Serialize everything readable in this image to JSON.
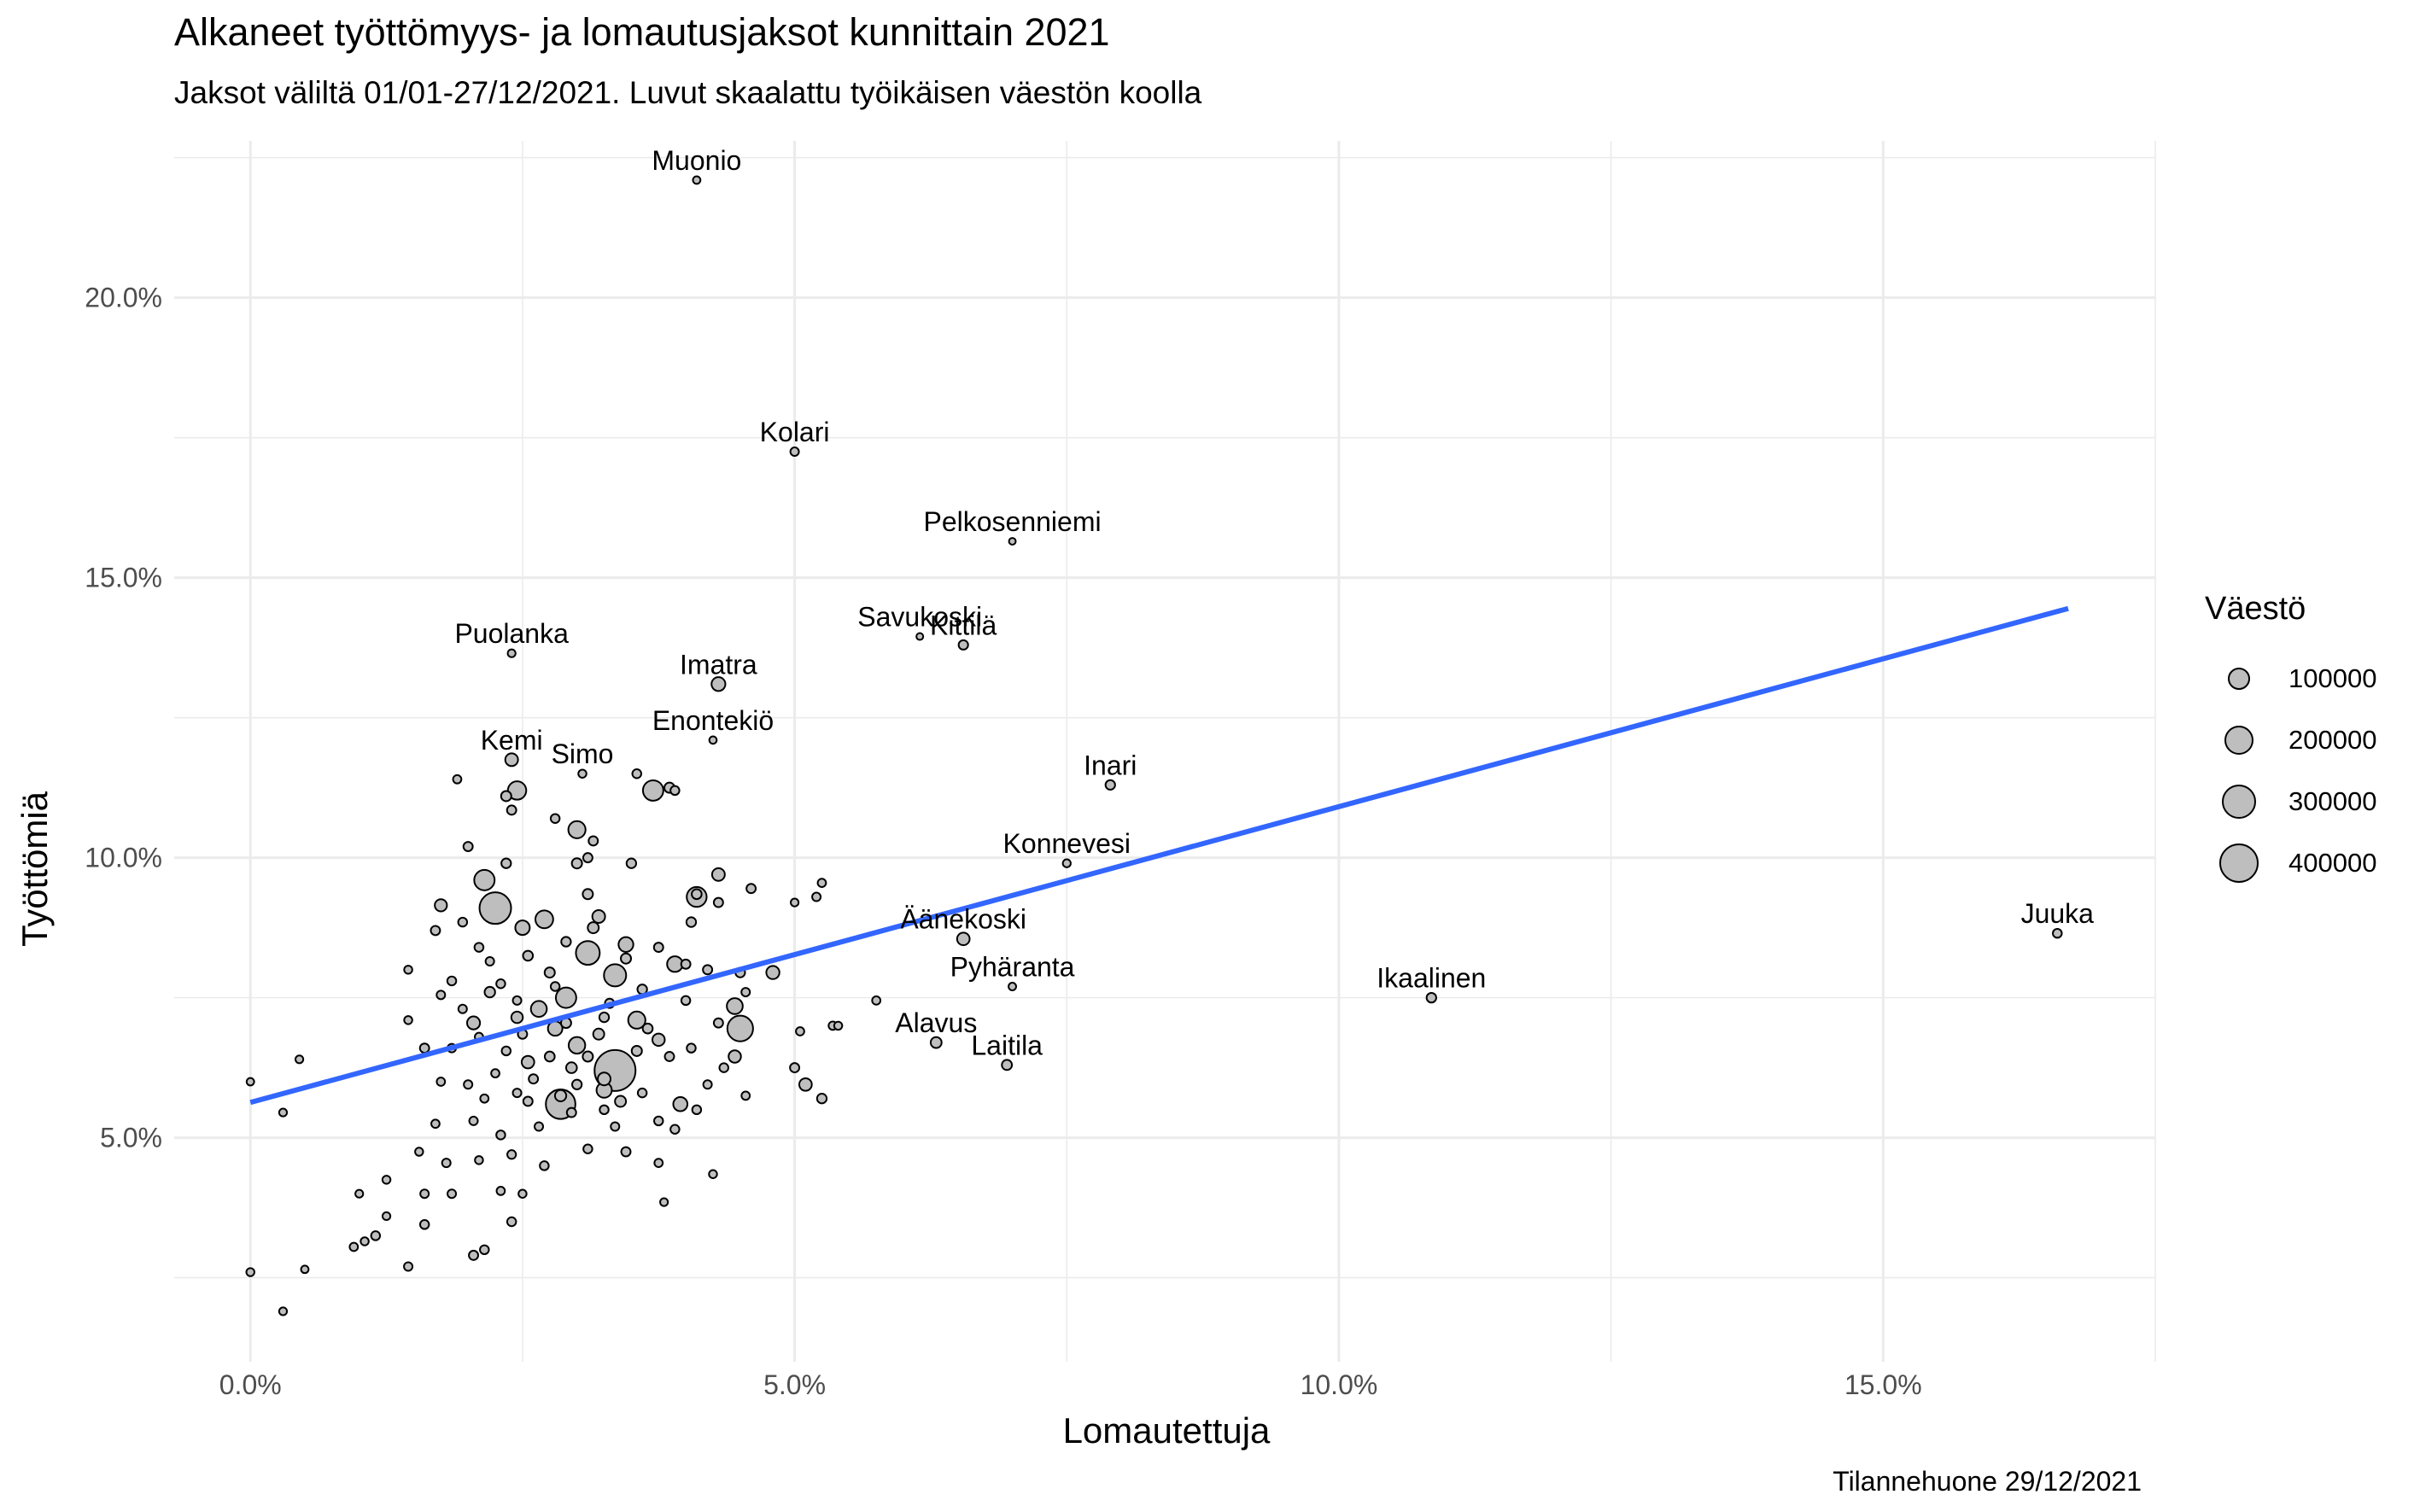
{
  "title": "Alkaneet työttömyys- ja lomautusjaksot kunnittain 2021",
  "subtitle": "Jaksot väliltä 01/01-27/12/2021. Luvut skaalattu työikäisen väestön koolla",
  "caption": "Tilannehuone 29/12/2021",
  "legend": {
    "title": "Väestö",
    "items": [
      {
        "label": "100000",
        "value": 100000
      },
      {
        "label": "200000",
        "value": 200000
      },
      {
        "label": "300000",
        "value": 300000
      },
      {
        "label": "400000",
        "value": 400000
      }
    ]
  },
  "chart_data": {
    "type": "scatter",
    "title": "Alkaneet työttömyys- ja lomautusjaksot kunnittain 2021",
    "xlabel": "Lomautettuja",
    "ylabel": "Työttömiä",
    "xlim": [
      -0.7,
      17.5
    ],
    "ylim": [
      1.0,
      22.8
    ],
    "x_ticks": [
      0,
      5,
      10,
      15
    ],
    "x_tick_labels": [
      "0.0%",
      "5.0%",
      "10.0%",
      "15.0%"
    ],
    "y_ticks": [
      5,
      10,
      15,
      20
    ],
    "y_tick_labels": [
      "5.0%",
      "10.0%",
      "15.0%",
      "20.0%"
    ],
    "grid": true,
    "legend_position": "right",
    "point_fill": "#bebebe",
    "trend_color": "#3366ff",
    "trend_line": {
      "x": [
        0,
        16.7
      ],
      "y": [
        5.63,
        14.45
      ]
    },
    "labeled_points": [
      {
        "name": "Muonio",
        "x": 4.1,
        "y": 22.1,
        "size": 2000
      },
      {
        "name": "Kolari",
        "x": 5.0,
        "y": 17.25,
        "size": 4000
      },
      {
        "name": "Pelkosenniemi",
        "x": 7.0,
        "y": 15.65,
        "size": 900
      },
      {
        "name": "Savukoski",
        "x": 6.15,
        "y": 13.95,
        "size": 1000
      },
      {
        "name": "Kittilä",
        "x": 6.55,
        "y": 13.8,
        "size": 6500
      },
      {
        "name": "Puolanka",
        "x": 2.4,
        "y": 13.65,
        "size": 2500
      },
      {
        "name": "Imatra",
        "x": 4.3,
        "y": 13.1,
        "size": 26000
      },
      {
        "name": "Enontekiö",
        "x": 4.25,
        "y": 12.1,
        "size": 1800
      },
      {
        "name": "Kemi",
        "x": 2.4,
        "y": 11.75,
        "size": 20000
      },
      {
        "name": "Simo",
        "x": 3.05,
        "y": 11.5,
        "size": 3000
      },
      {
        "name": "Inari",
        "x": 7.9,
        "y": 11.3,
        "size": 6800
      },
      {
        "name": "Konnevesi",
        "x": 7.5,
        "y": 9.9,
        "size": 2700
      },
      {
        "name": "Juuka",
        "x": 16.6,
        "y": 8.65,
        "size": 5000
      },
      {
        "name": "Äänekoski",
        "x": 6.55,
        "y": 8.55,
        "size": 19000
      },
      {
        "name": "Pyhäranta",
        "x": 7.0,
        "y": 7.7,
        "size": 2100
      },
      {
        "name": "Ikaalinen",
        "x": 10.85,
        "y": 7.5,
        "size": 7000
      },
      {
        "name": "Alavus",
        "x": 6.3,
        "y": 6.7,
        "size": 11500
      },
      {
        "name": "Laitila",
        "x": 6.95,
        "y": 6.3,
        "size": 8500
      }
    ],
    "points": [
      {
        "x": 3.35,
        "y": 6.2,
        "size": 440000
      },
      {
        "x": 2.25,
        "y": 9.1,
        "size": 240000
      },
      {
        "x": 2.85,
        "y": 5.6,
        "size": 205000
      },
      {
        "x": 4.5,
        "y": 6.95,
        "size": 145000
      },
      {
        "x": 3.1,
        "y": 8.3,
        "size": 120000
      },
      {
        "x": 3.35,
        "y": 7.9,
        "size": 100000
      },
      {
        "x": 2.9,
        "y": 7.5,
        "size": 80000
      },
      {
        "x": 3.7,
        "y": 11.2,
        "size": 80000
      },
      {
        "x": 2.15,
        "y": 9.6,
        "size": 80000
      },
      {
        "x": 4.1,
        "y": 9.3,
        "size": 75000
      },
      {
        "x": 3.0,
        "y": 10.5,
        "size": 50000
      },
      {
        "x": 2.45,
        "y": 11.2,
        "size": 60000
      },
      {
        "x": 2.7,
        "y": 8.9,
        "size": 55000
      },
      {
        "x": 3.55,
        "y": 7.1,
        "size": 50000
      },
      {
        "x": 3.0,
        "y": 6.65,
        "size": 45000
      },
      {
        "x": 2.65,
        "y": 7.3,
        "size": 40000
      },
      {
        "x": 4.45,
        "y": 7.35,
        "size": 40000
      },
      {
        "x": 3.9,
        "y": 8.1,
        "size": 38000
      },
      {
        "x": 3.25,
        "y": 5.85,
        "size": 35000
      },
      {
        "x": 3.45,
        "y": 8.45,
        "size": 32000
      },
      {
        "x": 2.5,
        "y": 8.75,
        "size": 30000
      },
      {
        "x": 2.8,
        "y": 6.95,
        "size": 30000
      },
      {
        "x": 3.95,
        "y": 5.6,
        "size": 28000
      },
      {
        "x": 4.8,
        "y": 7.95,
        "size": 22000
      },
      {
        "x": 2.05,
        "y": 7.05,
        "size": 21000
      },
      {
        "x": 4.3,
        "y": 9.7,
        "size": 20000
      },
      {
        "x": 3.2,
        "y": 8.95,
        "size": 20000
      },
      {
        "x": 2.55,
        "y": 6.35,
        "size": 19000
      },
      {
        "x": 5.1,
        "y": 5.95,
        "size": 19000
      },
      {
        "x": 3.75,
        "y": 6.75,
        "size": 18000
      },
      {
        "x": 4.45,
        "y": 6.45,
        "size": 18000
      },
      {
        "x": 1.75,
        "y": 9.15,
        "size": 17000
      },
      {
        "x": 3.0,
        "y": 9.9,
        "size": 9000
      },
      {
        "x": 2.35,
        "y": 9.9,
        "size": 7000
      },
      {
        "x": 2.0,
        "y": 10.2,
        "size": 6000
      },
      {
        "x": 3.15,
        "y": 10.3,
        "size": 6000
      },
      {
        "x": 2.8,
        "y": 10.7,
        "size": 5000
      },
      {
        "x": 3.1,
        "y": 10.0,
        "size": 6000
      },
      {
        "x": 3.1,
        "y": 9.35,
        "size": 9000
      },
      {
        "x": 3.5,
        "y": 9.9,
        "size": 7000
      },
      {
        "x": 4.1,
        "y": 9.35,
        "size": 8000
      },
      {
        "x": 4.3,
        "y": 9.2,
        "size": 6000
      },
      {
        "x": 4.6,
        "y": 9.45,
        "size": 6000
      },
      {
        "x": 5.0,
        "y": 9.2,
        "size": 2500
      },
      {
        "x": 5.25,
        "y": 9.55,
        "size": 3500
      },
      {
        "x": 5.2,
        "y": 9.3,
        "size": 4000
      },
      {
        "x": 1.9,
        "y": 11.4,
        "size": 3500
      },
      {
        "x": 3.9,
        "y": 11.2,
        "size": 5000
      },
      {
        "x": 3.55,
        "y": 11.5,
        "size": 5000
      },
      {
        "x": 3.85,
        "y": 11.25,
        "size": 9000
      },
      {
        "x": 2.35,
        "y": 11.1,
        "size": 9000
      },
      {
        "x": 2.4,
        "y": 10.85,
        "size": 6000
      },
      {
        "x": 1.7,
        "y": 8.7,
        "size": 6000
      },
      {
        "x": 1.95,
        "y": 8.85,
        "size": 5000
      },
      {
        "x": 2.1,
        "y": 8.4,
        "size": 5000
      },
      {
        "x": 2.2,
        "y": 8.15,
        "size": 4000
      },
      {
        "x": 2.55,
        "y": 8.25,
        "size": 8000
      },
      {
        "x": 2.9,
        "y": 8.5,
        "size": 7000
      },
      {
        "x": 3.45,
        "y": 8.2,
        "size": 9000
      },
      {
        "x": 3.75,
        "y": 8.4,
        "size": 6000
      },
      {
        "x": 4.05,
        "y": 8.85,
        "size": 7000
      },
      {
        "x": 4.0,
        "y": 8.1,
        "size": 6000
      },
      {
        "x": 4.5,
        "y": 7.95,
        "size": 7000
      },
      {
        "x": 4.2,
        "y": 8.0,
        "size": 6000
      },
      {
        "x": 1.85,
        "y": 7.8,
        "size": 5000
      },
      {
        "x": 1.75,
        "y": 7.55,
        "size": 4000
      },
      {
        "x": 2.3,
        "y": 7.75,
        "size": 5000
      },
      {
        "x": 2.45,
        "y": 7.45,
        "size": 4000
      },
      {
        "x": 2.8,
        "y": 7.7,
        "size": 5000
      },
      {
        "x": 3.3,
        "y": 7.4,
        "size": 6000
      },
      {
        "x": 3.6,
        "y": 7.65,
        "size": 7000
      },
      {
        "x": 4.0,
        "y": 7.45,
        "size": 5000
      },
      {
        "x": 1.45,
        "y": 7.1,
        "size": 3000
      },
      {
        "x": 1.95,
        "y": 7.3,
        "size": 4000
      },
      {
        "x": 2.5,
        "y": 6.85,
        "size": 6000
      },
      {
        "x": 2.9,
        "y": 7.05,
        "size": 9000
      },
      {
        "x": 3.25,
        "y": 7.15,
        "size": 7000
      },
      {
        "x": 3.65,
        "y": 6.95,
        "size": 8000
      },
      {
        "x": 4.3,
        "y": 7.05,
        "size": 6000
      },
      {
        "x": 1.6,
        "y": 6.6,
        "size": 6000
      },
      {
        "x": 1.85,
        "y": 6.6,
        "size": 4000
      },
      {
        "x": 2.1,
        "y": 6.8,
        "size": 3500
      },
      {
        "x": 2.35,
        "y": 6.55,
        "size": 5000
      },
      {
        "x": 2.75,
        "y": 6.45,
        "size": 8000
      },
      {
        "x": 3.1,
        "y": 6.45,
        "size": 9000
      },
      {
        "x": 3.85,
        "y": 6.45,
        "size": 6000
      },
      {
        "x": 4.05,
        "y": 6.6,
        "size": 5000
      },
      {
        "x": 2.25,
        "y": 6.15,
        "size": 3500
      },
      {
        "x": 2.6,
        "y": 6.05,
        "size": 6000
      },
      {
        "x": 3.0,
        "y": 5.95,
        "size": 7000
      },
      {
        "x": 3.6,
        "y": 5.8,
        "size": 5000
      },
      {
        "x": 4.2,
        "y": 5.95,
        "size": 4000
      },
      {
        "x": 4.35,
        "y": 6.25,
        "size": 5000
      },
      {
        "x": 1.75,
        "y": 6.0,
        "size": 3500
      },
      {
        "x": 2.0,
        "y": 5.95,
        "size": 4000
      },
      {
        "x": 2.15,
        "y": 5.7,
        "size": 3500
      },
      {
        "x": 2.55,
        "y": 5.65,
        "size": 6000
      },
      {
        "x": 3.25,
        "y": 5.5,
        "size": 5000
      },
      {
        "x": 3.75,
        "y": 5.3,
        "size": 5000
      },
      {
        "x": 4.1,
        "y": 5.5,
        "size": 5000
      },
      {
        "x": 1.7,
        "y": 5.25,
        "size": 3500
      },
      {
        "x": 2.05,
        "y": 5.3,
        "size": 4000
      },
      {
        "x": 2.3,
        "y": 5.05,
        "size": 5000
      },
      {
        "x": 2.65,
        "y": 5.2,
        "size": 4000
      },
      {
        "x": 2.95,
        "y": 5.45,
        "size": 6000
      },
      {
        "x": 3.35,
        "y": 5.2,
        "size": 4000
      },
      {
        "x": 3.9,
        "y": 5.15,
        "size": 5000
      },
      {
        "x": 1.55,
        "y": 4.75,
        "size": 3000
      },
      {
        "x": 1.8,
        "y": 4.55,
        "size": 4000
      },
      {
        "x": 2.1,
        "y": 4.6,
        "size": 3000
      },
      {
        "x": 2.4,
        "y": 4.7,
        "size": 4500
      },
      {
        "x": 2.7,
        "y": 4.5,
        "size": 5000
      },
      {
        "x": 3.1,
        "y": 4.8,
        "size": 5000
      },
      {
        "x": 3.45,
        "y": 4.75,
        "size": 6000
      },
      {
        "x": 3.75,
        "y": 4.55,
        "size": 3500
      },
      {
        "x": 4.25,
        "y": 4.35,
        "size": 3000
      },
      {
        "x": 1.25,
        "y": 4.25,
        "size": 3000
      },
      {
        "x": 1.6,
        "y": 4.0,
        "size": 4000
      },
      {
        "x": 1.85,
        "y": 4.0,
        "size": 4000
      },
      {
        "x": 2.3,
        "y": 4.05,
        "size": 3500
      },
      {
        "x": 2.5,
        "y": 4.0,
        "size": 3000
      },
      {
        "x": 1.0,
        "y": 4.0,
        "size": 2500
      },
      {
        "x": 1.25,
        "y": 3.6,
        "size": 2500
      },
      {
        "x": 1.6,
        "y": 3.45,
        "size": 5000
      },
      {
        "x": 2.4,
        "y": 3.5,
        "size": 5000
      },
      {
        "x": 3.8,
        "y": 3.85,
        "size": 2500
      },
      {
        "x": 1.15,
        "y": 3.25,
        "size": 5000
      },
      {
        "x": 1.05,
        "y": 3.15,
        "size": 3000
      },
      {
        "x": 0.95,
        "y": 3.05,
        "size": 3500
      },
      {
        "x": 1.45,
        "y": 2.7,
        "size": 4000
      },
      {
        "x": 2.05,
        "y": 2.9,
        "size": 6000
      },
      {
        "x": 2.15,
        "y": 3.0,
        "size": 5000
      },
      {
        "x": 0.5,
        "y": 2.65,
        "size": 2000
      },
      {
        "x": 0.0,
        "y": 2.6,
        "size": 3000
      },
      {
        "x": 0.3,
        "y": 1.9,
        "size": 2500
      },
      {
        "x": 0.0,
        "y": 6.0,
        "size": 2000
      },
      {
        "x": 0.3,
        "y": 5.45,
        "size": 2500
      },
      {
        "x": 0.45,
        "y": 6.4,
        "size": 2500
      },
      {
        "x": 1.45,
        "y": 8.0,
        "size": 3000
      },
      {
        "x": 4.55,
        "y": 7.6,
        "size": 4000
      },
      {
        "x": 4.55,
        "y": 5.75,
        "size": 3500
      },
      {
        "x": 5.05,
        "y": 6.9,
        "size": 3500
      },
      {
        "x": 5.35,
        "y": 7.0,
        "size": 3500
      },
      {
        "x": 5.4,
        "y": 7.0,
        "size": 3000
      },
      {
        "x": 5.75,
        "y": 7.45,
        "size": 3500
      },
      {
        "x": 5.0,
        "y": 6.25,
        "size": 6000
      },
      {
        "x": 5.25,
        "y": 5.7,
        "size": 7000
      },
      {
        "x": 3.2,
        "y": 6.85,
        "size": 12000
      },
      {
        "x": 2.95,
        "y": 6.25,
        "size": 11000
      },
      {
        "x": 3.55,
        "y": 6.55,
        "size": 9000
      },
      {
        "x": 2.75,
        "y": 7.95,
        "size": 9000
      },
      {
        "x": 3.15,
        "y": 8.75,
        "size": 12000
      },
      {
        "x": 2.45,
        "y": 5.8,
        "size": 4000
      },
      {
        "x": 3.4,
        "y": 5.65,
        "size": 12000
      },
      {
        "x": 2.85,
        "y": 5.75,
        "size": 13000
      },
      {
        "x": 3.25,
        "y": 6.05,
        "size": 20000
      },
      {
        "x": 2.45,
        "y": 7.15,
        "size": 14000
      },
      {
        "x": 2.2,
        "y": 7.6,
        "size": 10000
      }
    ]
  }
}
